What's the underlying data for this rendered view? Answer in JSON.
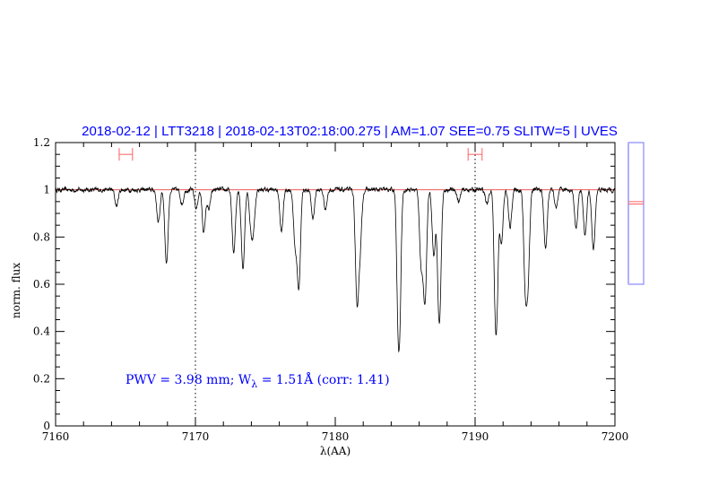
{
  "chart_data": {
    "type": "line",
    "title": "2018-02-12 | LTT3218 | 2018-02-13T02:18:00.275 | AM=1.07 SEE=0.75 SLITW=5 | UVES",
    "xlabel": "λ(AA)",
    "ylabel": "norm. flux",
    "xlim": [
      7160,
      7200
    ],
    "ylim": [
      0,
      1.2
    ],
    "x_ticks": [
      7160,
      7170,
      7180,
      7190,
      7200
    ],
    "x_tick_labels": [
      "7160",
      "7170",
      "7180",
      "7190",
      "7200"
    ],
    "y_ticks": [
      0,
      0.2,
      0.4,
      0.6,
      0.8,
      1,
      1.2
    ],
    "y_tick_labels": [
      "0",
      "0.2",
      "0.4",
      "0.6",
      "0.8",
      "1",
      "1.2"
    ],
    "x_minor_step": 2,
    "y_minor_step": 0.05,
    "continuum_level": 1.0,
    "vertical_markers": [
      7170,
      7190
    ],
    "fit_ranges": [
      [
        7164.55,
        7165.5
      ],
      [
        7189.5,
        7190.5
      ]
    ],
    "fit_range_flux": 1.15,
    "annotation": {
      "pwv_text": "PWV = 3.98 mm; W",
      "w_subscript": "λ",
      "w_text": " = 1.51Å (corr: 1.41)"
    },
    "side_panel": {
      "range": [
        0.6,
        1.2
      ],
      "levels": [
        0.95,
        0.94
      ]
    },
    "absorption_features": [
      {
        "x": 7164.36,
        "min_flux": 0.93
      },
      {
        "x": 7167.35,
        "min_flux": 0.86
      },
      {
        "x": 7167.93,
        "min_flux": 0.69
      },
      {
        "x": 7169.04,
        "min_flux": 0.94
      },
      {
        "x": 7170.06,
        "min_flux": 0.92
      },
      {
        "x": 7170.6,
        "min_flux": 0.82
      },
      {
        "x": 7170.96,
        "min_flux": 0.915
      },
      {
        "x": 7172.74,
        "min_flux": 0.73
      },
      {
        "x": 7173.4,
        "min_flux": 0.67
      },
      {
        "x": 7173.97,
        "min_flux": 0.85
      },
      {
        "x": 7174.15,
        "min_flux": 0.85
      },
      {
        "x": 7176.15,
        "min_flux": 0.82
      },
      {
        "x": 7177.13,
        "min_flux": 0.77
      },
      {
        "x": 7177.39,
        "min_flux": 0.59
      },
      {
        "x": 7178.4,
        "min_flux": 0.88
      },
      {
        "x": 7179.3,
        "min_flux": 0.92
      },
      {
        "x": 7181.56,
        "min_flux": 0.525
      },
      {
        "x": 7181.78,
        "min_flux": 0.78
      },
      {
        "x": 7184.55,
        "min_flux": 0.315
      },
      {
        "x": 7186.15,
        "min_flux": 0.68
      },
      {
        "x": 7186.41,
        "min_flux": 0.53
      },
      {
        "x": 7187.05,
        "min_flux": 0.72
      },
      {
        "x": 7187.44,
        "min_flux": 0.435
      },
      {
        "x": 7188.83,
        "min_flux": 0.95
      },
      {
        "x": 7190.85,
        "min_flux": 0.94
      },
      {
        "x": 7191.5,
        "min_flux": 0.385
      },
      {
        "x": 7191.88,
        "min_flux": 0.77
      },
      {
        "x": 7192.5,
        "min_flux": 0.84
      },
      {
        "x": 7193.6,
        "min_flux": 0.6
      },
      {
        "x": 7193.78,
        "min_flux": 0.65
      },
      {
        "x": 7195.04,
        "min_flux": 0.75
      },
      {
        "x": 7195.8,
        "min_flux": 0.92
      },
      {
        "x": 7197.22,
        "min_flux": 0.84
      },
      {
        "x": 7197.86,
        "min_flux": 0.81
      },
      {
        "x": 7198.46,
        "min_flux": 0.745
      }
    ],
    "colors": {
      "spectrum": "#000000",
      "continuum": "#e84040",
      "title": "#0000ff",
      "fit_range": "#ff6060",
      "side_panel": "#7070ff"
    },
    "grid": false
  }
}
